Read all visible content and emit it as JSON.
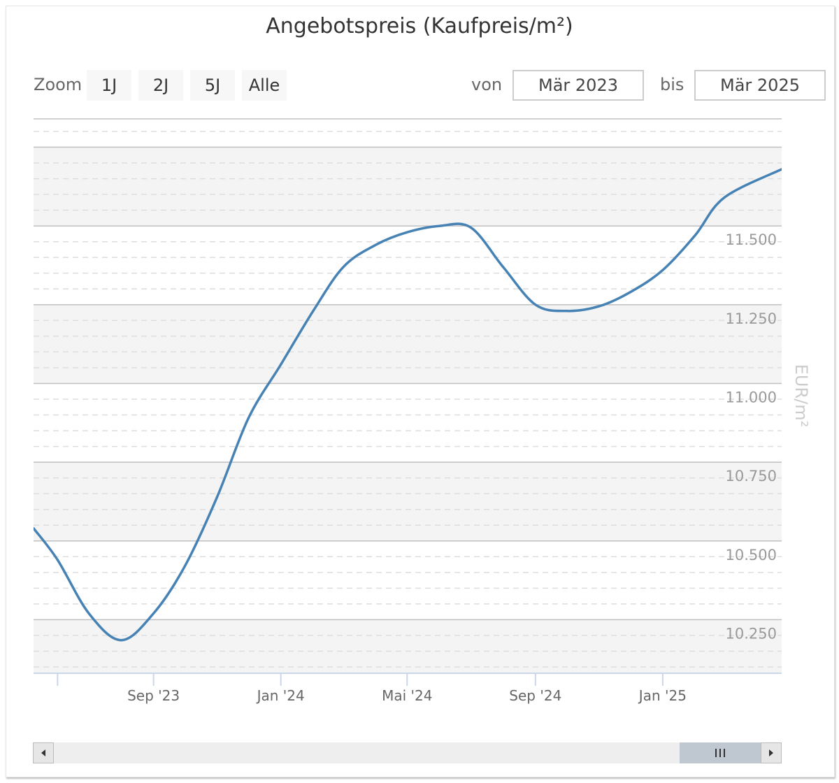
{
  "title": "Angebotspreis (Kaufpreis/m²)",
  "zoom": {
    "label": "Zoom",
    "buttons": [
      "1J",
      "2J",
      "5J",
      "Alle"
    ]
  },
  "range": {
    "from_label": "von",
    "from_value": "Mär 2023",
    "to_label": "bis",
    "to_value": "Mär 2025"
  },
  "chart_data": {
    "type": "line",
    "title": "Angebotspreis (Kaufpreis/m²)",
    "ylabel": "EUR/m²",
    "ylim": [
      10080,
      11840
    ],
    "yticks": [
      10250,
      10500,
      10750,
      11000,
      11250,
      11500
    ],
    "ytick_labels": [
      "10.250",
      "10.500",
      "10.750",
      "11.000",
      "11.250",
      "11.500"
    ],
    "xlim": [
      "2023-05-09",
      "2025-04-25"
    ],
    "xticks": [
      "2023-06-01",
      "2023-09-01",
      "2024-01-01",
      "2024-05-01",
      "2024-09-01",
      "2025-01-01"
    ],
    "xtick_labels": [
      "",
      "Sep '23",
      "Jan '24",
      "Mai '24",
      "Sep '24",
      "Jan '25"
    ],
    "series": [
      {
        "name": "",
        "color": "#4682b4",
        "points": [
          [
            "2023-05-09",
            10540
          ],
          [
            "2023-06-01",
            10440
          ],
          [
            "2023-07-01",
            10270
          ],
          [
            "2023-08-01",
            10185
          ],
          [
            "2023-09-01",
            10270
          ],
          [
            "2023-10-01",
            10420
          ],
          [
            "2023-11-01",
            10640
          ],
          [
            "2023-12-01",
            10890
          ],
          [
            "2024-01-01",
            11060
          ],
          [
            "2024-02-01",
            11230
          ],
          [
            "2024-03-01",
            11370
          ],
          [
            "2024-04-01",
            11440
          ],
          [
            "2024-05-01",
            11480
          ],
          [
            "2024-06-01",
            11500
          ],
          [
            "2024-07-01",
            11495
          ],
          [
            "2024-08-01",
            11370
          ],
          [
            "2024-09-01",
            11250
          ],
          [
            "2024-10-01",
            11230
          ],
          [
            "2024-11-01",
            11245
          ],
          [
            "2024-12-01",
            11290
          ],
          [
            "2025-01-01",
            11360
          ],
          [
            "2025-02-01",
            11470
          ],
          [
            "2025-03-01",
            11590
          ],
          [
            "2025-04-25",
            11680
          ]
        ]
      }
    ],
    "grid": true,
    "legend": "none"
  }
}
